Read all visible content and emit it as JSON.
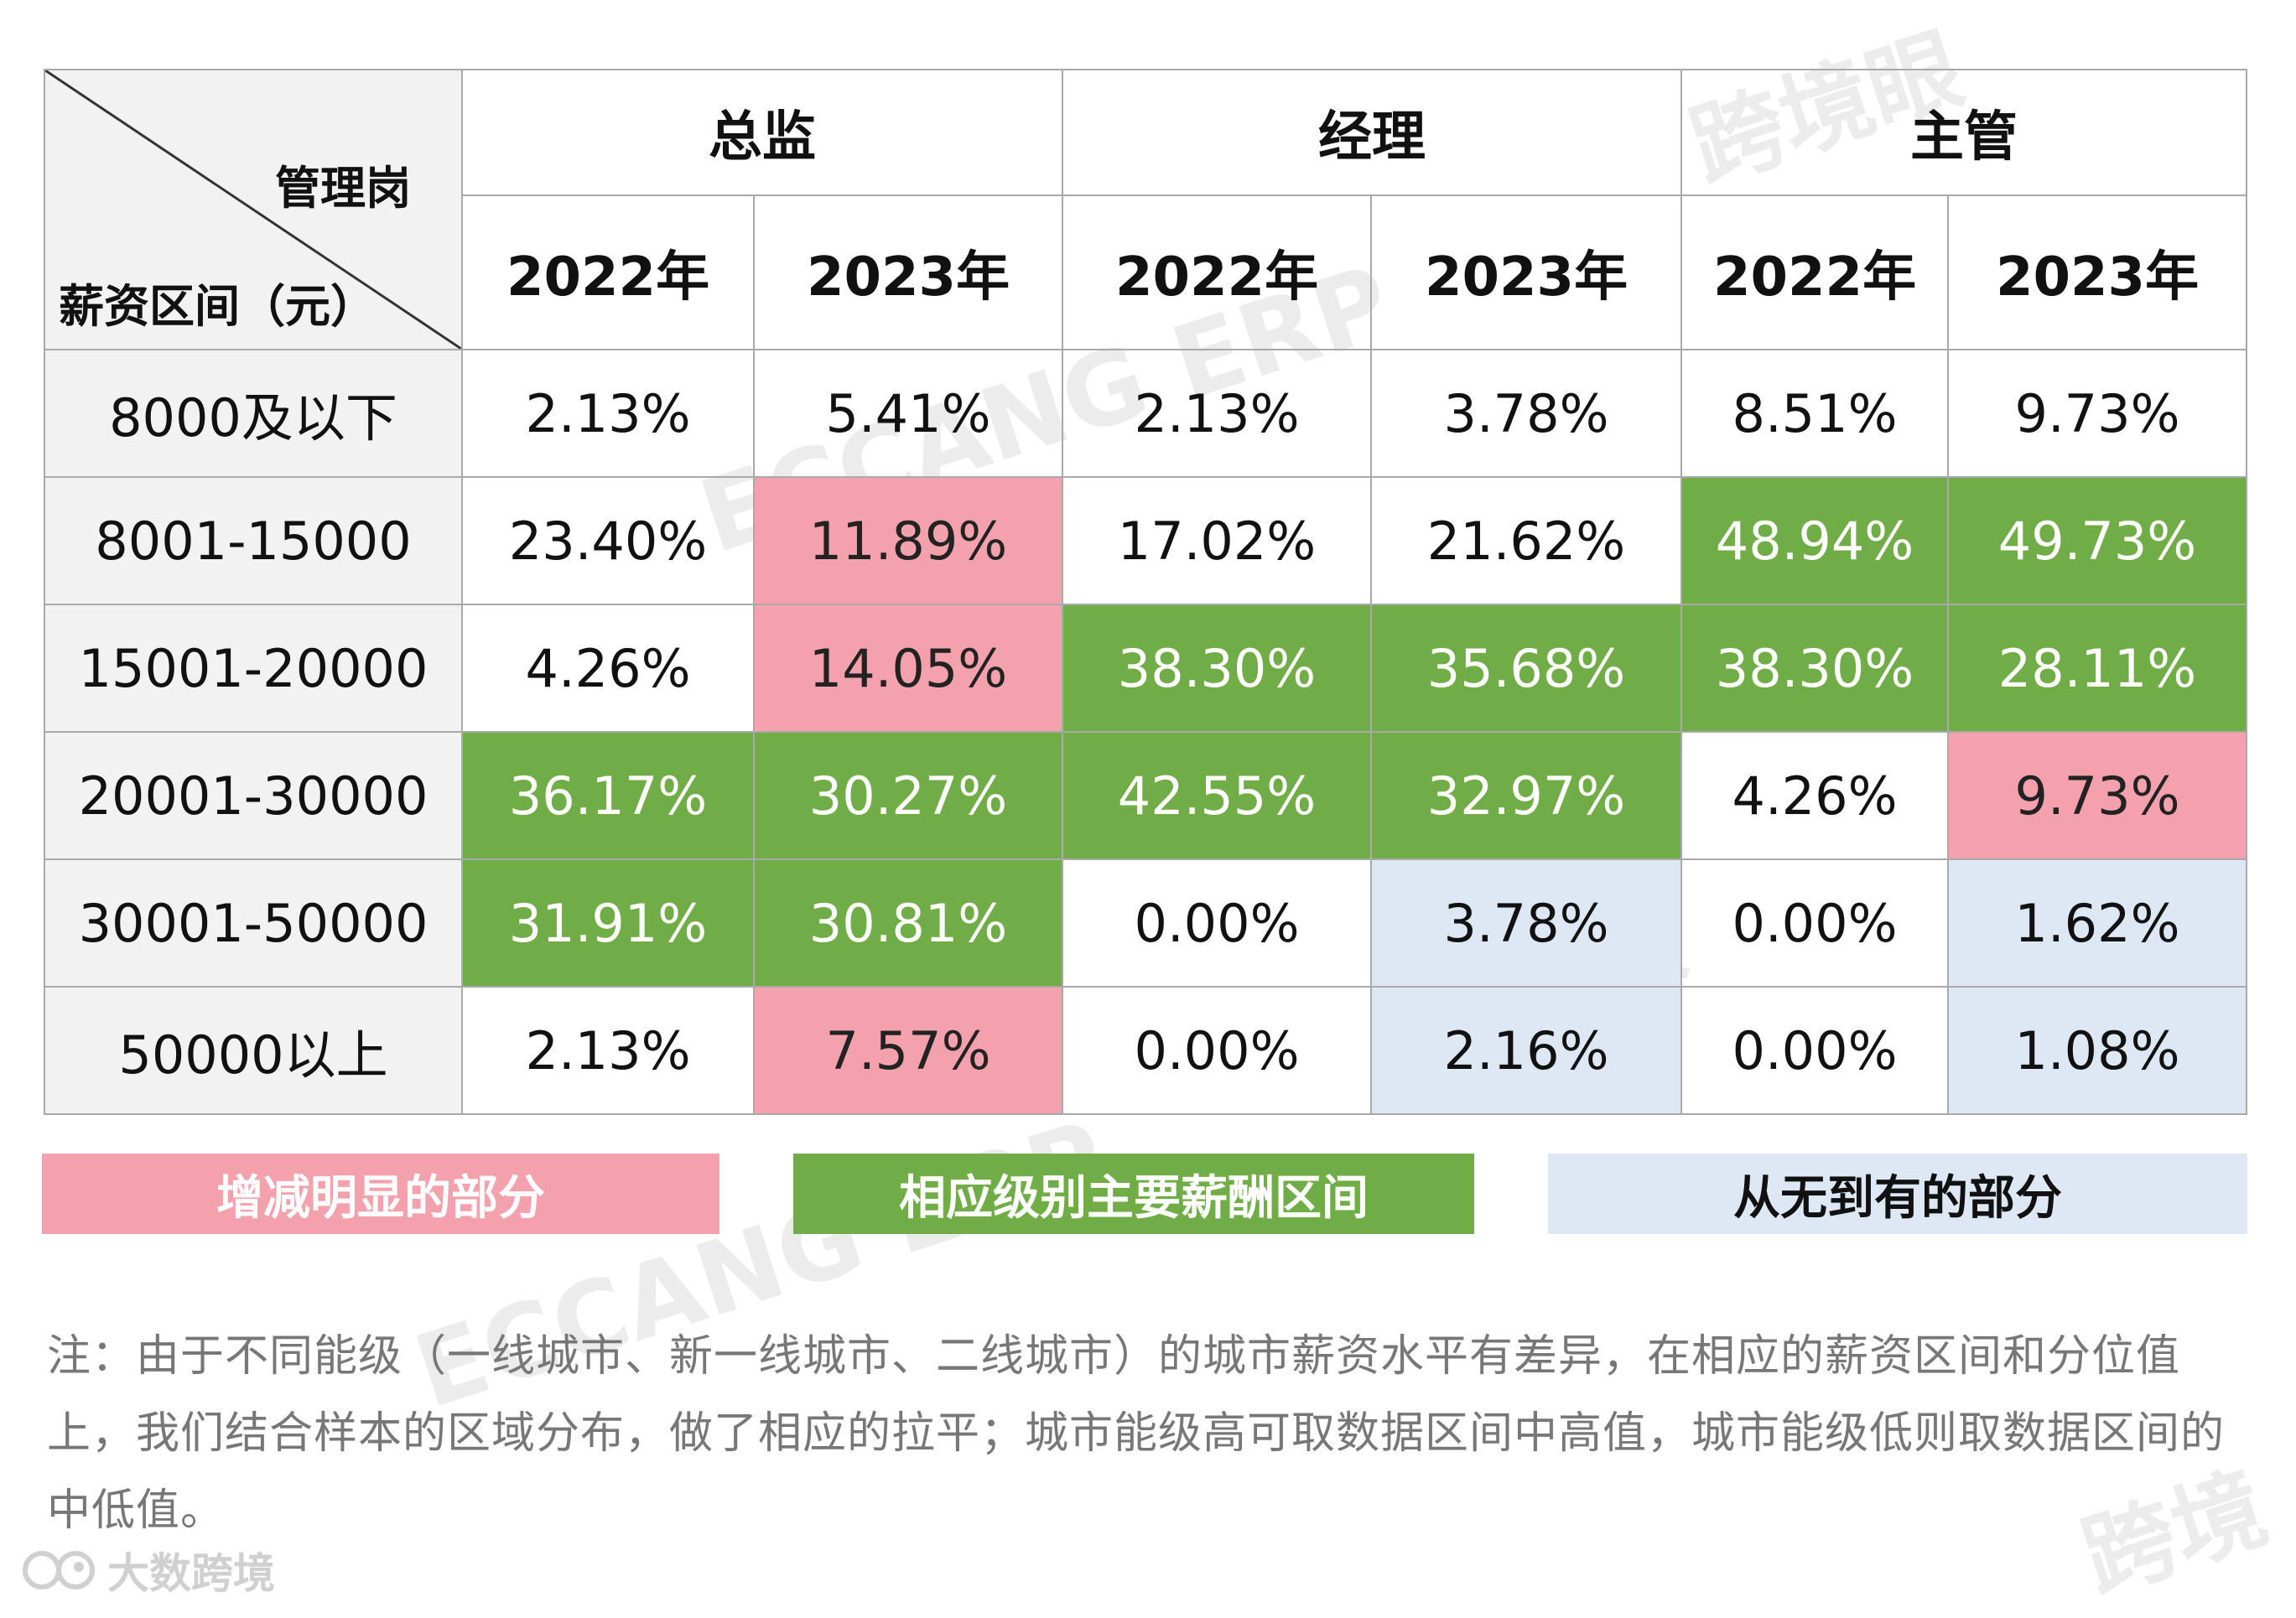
{
  "table": {
    "corner_top": "管理岗",
    "corner_bottom": "薪资区间（元）",
    "groups": [
      "总监",
      "经理",
      "主管"
    ],
    "years": [
      "2022年",
      "2023年",
      "2022年",
      "2023年",
      "2022年",
      "2023年"
    ],
    "rows": [
      {
        "range": "8000及以下",
        "values": [
          "2.13%",
          "5.41%",
          "2.13%",
          "3.78%",
          "8.51%",
          "9.73%"
        ],
        "highlights": [
          "none",
          "none",
          "none",
          "none",
          "none",
          "none"
        ]
      },
      {
        "range": "8001-15000",
        "values": [
          "23.40%",
          "11.89%",
          "17.02%",
          "21.62%",
          "48.94%",
          "49.73%"
        ],
        "highlights": [
          "none",
          "pink",
          "none",
          "none",
          "green",
          "green"
        ]
      },
      {
        "range": "15001-20000",
        "values": [
          "4.26%",
          "14.05%",
          "38.30%",
          "35.68%",
          "38.30%",
          "28.11%"
        ],
        "highlights": [
          "none",
          "pink",
          "green",
          "green",
          "green",
          "green"
        ]
      },
      {
        "range": "20001-30000",
        "values": [
          "36.17%",
          "30.27%",
          "42.55%",
          "32.97%",
          "4.26%",
          "9.73%"
        ],
        "highlights": [
          "green",
          "green",
          "green",
          "green",
          "none",
          "pink"
        ]
      },
      {
        "range": "30001-50000",
        "values": [
          "31.91%",
          "30.81%",
          "0.00%",
          "3.78%",
          "0.00%",
          "1.62%"
        ],
        "highlights": [
          "green",
          "green",
          "none",
          "blue",
          "none",
          "blue"
        ]
      },
      {
        "range": "50000以上",
        "values": [
          "2.13%",
          "7.57%",
          "0.00%",
          "2.16%",
          "0.00%",
          "1.08%"
        ],
        "highlights": [
          "none",
          "pink",
          "none",
          "blue",
          "none",
          "blue"
        ]
      }
    ]
  },
  "legend": {
    "pink_label": "增减明显的部分",
    "green_label": "相应级别主要薪酬区间",
    "blue_label": "从无到有的部分"
  },
  "note": {
    "text": "注：由于不同能级（一线城市、新一线城市、二线城市）的城市薪资水平有差异，在相应的薪资区间和分位值上，我们结合样本的区域分布，做了相应的拉平；城市能级高可取数据区间中高值，城市能级低则取数据区间的中低值。"
  },
  "brand": {
    "name": "大数跨境"
  },
  "colors": {
    "green": "#70ad47",
    "pink": "#f4a1ae",
    "blue": "#dde8f4",
    "header_gray": "#f2f2f2"
  }
}
